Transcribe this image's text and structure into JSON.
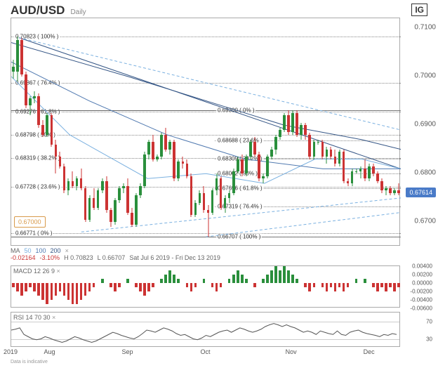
{
  "title": {
    "pair": "AUD/USD",
    "timeframe": "Daily"
  },
  "logo": "IG",
  "footer": "Data is indicative",
  "main": {
    "ymin": 0.665,
    "ymax": 0.712,
    "ylabels": [
      {
        "v": 0.71,
        "t": "0.7100"
      },
      {
        "v": 0.7,
        "t": "0.7000"
      },
      {
        "v": 0.69,
        "t": "0.6900"
      },
      {
        "v": 0.68,
        "t": "0.6800"
      },
      {
        "v": 0.67,
        "t": "0.6700"
      }
    ],
    "fib1": [
      {
        "v": 0.70823,
        "t": "0.70823 ( 100% )"
      },
      {
        "v": 0.69867,
        "t": "0.69867 ( 76.4% )"
      },
      {
        "v": 0.69276,
        "t": "0.69276 ( 61.8% )"
      },
      {
        "v": 0.68798,
        "t": "0.68798 ( 50% )"
      },
      {
        "v": 0.68319,
        "t": "0.68319 ( 38.2% )"
      },
      {
        "v": 0.67728,
        "t": "0.67728 ( 23.6% )"
      },
      {
        "v": 0.66771,
        "t": "0.66771 ( 0% )"
      }
    ],
    "fib2": [
      {
        "v": 0.693,
        "t": "0.69300 ( 0% )"
      },
      {
        "v": 0.68688,
        "t": "0.68688 ( 23.6% )"
      },
      {
        "v": 0.68309,
        "t": "0.68309 ( 38.2% )"
      },
      {
        "v": 0.68002,
        "t": "0.68002 ( 50% )"
      },
      {
        "v": 0.67696,
        "t": "0.67696 ( 61.8% )"
      },
      {
        "v": 0.67319,
        "t": "0.67319 ( 76.4% )"
      },
      {
        "v": 0.66707,
        "t": "0.66707 ( 100% )"
      }
    ],
    "solid_lines": [
      0.693,
      0.66707
    ],
    "current_price": {
      "v": 0.67614,
      "t": "0.67614"
    },
    "ref_price": {
      "v": 0.67,
      "t": "0.67000"
    },
    "candles": [
      {
        "o": 0.702,
        "h": 0.7035,
        "l": 0.6995,
        "c": 0.701,
        "u": true
      },
      {
        "o": 0.701,
        "h": 0.7082,
        "l": 0.699,
        "c": 0.7075,
        "u": true
      },
      {
        "o": 0.7075,
        "h": 0.708,
        "l": 0.7,
        "c": 0.7005,
        "u": false
      },
      {
        "o": 0.7005,
        "h": 0.701,
        "l": 0.6935,
        "c": 0.694,
        "u": false
      },
      {
        "o": 0.694,
        "h": 0.696,
        "l": 0.692,
        "c": 0.6955,
        "u": true
      },
      {
        "o": 0.6955,
        "h": 0.697,
        "l": 0.6945,
        "c": 0.696,
        "u": true
      },
      {
        "o": 0.696,
        "h": 0.6965,
        "l": 0.6895,
        "c": 0.69,
        "u": false
      },
      {
        "o": 0.69,
        "h": 0.691,
        "l": 0.6875,
        "c": 0.688,
        "u": false
      },
      {
        "o": 0.688,
        "h": 0.6925,
        "l": 0.6875,
        "c": 0.692,
        "u": true
      },
      {
        "o": 0.692,
        "h": 0.6925,
        "l": 0.6855,
        "c": 0.686,
        "u": false
      },
      {
        "o": 0.686,
        "h": 0.687,
        "l": 0.68,
        "c": 0.6835,
        "u": false
      },
      {
        "o": 0.6835,
        "h": 0.6845,
        "l": 0.681,
        "c": 0.6815,
        "u": false
      },
      {
        "o": 0.6815,
        "h": 0.682,
        "l": 0.676,
        "c": 0.6765,
        "u": false
      },
      {
        "o": 0.6765,
        "h": 0.679,
        "l": 0.6755,
        "c": 0.6785,
        "u": true
      },
      {
        "o": 0.6785,
        "h": 0.6805,
        "l": 0.677,
        "c": 0.6775,
        "u": false
      },
      {
        "o": 0.6775,
        "h": 0.6795,
        "l": 0.6765,
        "c": 0.679,
        "u": true
      },
      {
        "o": 0.679,
        "h": 0.681,
        "l": 0.6765,
        "c": 0.677,
        "u": false
      },
      {
        "o": 0.677,
        "h": 0.6775,
        "l": 0.67,
        "c": 0.6705,
        "u": false
      },
      {
        "o": 0.6705,
        "h": 0.6755,
        "l": 0.67,
        "c": 0.675,
        "u": true
      },
      {
        "o": 0.675,
        "h": 0.677,
        "l": 0.6725,
        "c": 0.673,
        "u": false
      },
      {
        "o": 0.673,
        "h": 0.677,
        "l": 0.6725,
        "c": 0.6765,
        "u": true
      },
      {
        "o": 0.6765,
        "h": 0.679,
        "l": 0.676,
        "c": 0.6785,
        "u": true
      },
      {
        "o": 0.6785,
        "h": 0.6795,
        "l": 0.672,
        "c": 0.6725,
        "u": false
      },
      {
        "o": 0.6725,
        "h": 0.673,
        "l": 0.669,
        "c": 0.67,
        "u": false
      },
      {
        "o": 0.67,
        "h": 0.675,
        "l": 0.6695,
        "c": 0.6745,
        "u": true
      },
      {
        "o": 0.6745,
        "h": 0.6775,
        "l": 0.674,
        "c": 0.677,
        "u": true
      },
      {
        "o": 0.677,
        "h": 0.678,
        "l": 0.676,
        "c": 0.6775,
        "u": true
      },
      {
        "o": 0.6775,
        "h": 0.679,
        "l": 0.6715,
        "c": 0.672,
        "u": false
      },
      {
        "o": 0.672,
        "h": 0.673,
        "l": 0.669,
        "c": 0.6695,
        "u": false
      },
      {
        "o": 0.6695,
        "h": 0.676,
        "l": 0.669,
        "c": 0.6755,
        "u": true
      },
      {
        "o": 0.6755,
        "h": 0.678,
        "l": 0.675,
        "c": 0.6775,
        "u": true
      },
      {
        "o": 0.6775,
        "h": 0.6845,
        "l": 0.677,
        "c": 0.684,
        "u": true
      },
      {
        "o": 0.684,
        "h": 0.687,
        "l": 0.683,
        "c": 0.6865,
        "u": true
      },
      {
        "o": 0.6865,
        "h": 0.688,
        "l": 0.6825,
        "c": 0.683,
        "u": false
      },
      {
        "o": 0.683,
        "h": 0.684,
        "l": 0.6825,
        "c": 0.6835,
        "u": true
      },
      {
        "o": 0.6835,
        "h": 0.6885,
        "l": 0.683,
        "c": 0.688,
        "u": true
      },
      {
        "o": 0.688,
        "h": 0.6895,
        "l": 0.6845,
        "c": 0.685,
        "u": false
      },
      {
        "o": 0.685,
        "h": 0.687,
        "l": 0.684,
        "c": 0.6865,
        "u": true
      },
      {
        "o": 0.6865,
        "h": 0.687,
        "l": 0.6785,
        "c": 0.679,
        "u": false
      },
      {
        "o": 0.679,
        "h": 0.683,
        "l": 0.6785,
        "c": 0.6825,
        "u": true
      },
      {
        "o": 0.6825,
        "h": 0.6835,
        "l": 0.681,
        "c": 0.682,
        "u": false
      },
      {
        "o": 0.682,
        "h": 0.683,
        "l": 0.679,
        "c": 0.6795,
        "u": false
      },
      {
        "o": 0.6795,
        "h": 0.68,
        "l": 0.671,
        "c": 0.6715,
        "u": false
      },
      {
        "o": 0.6715,
        "h": 0.6745,
        "l": 0.671,
        "c": 0.674,
        "u": true
      },
      {
        "o": 0.674,
        "h": 0.6765,
        "l": 0.6735,
        "c": 0.676,
        "u": true
      },
      {
        "o": 0.676,
        "h": 0.6775,
        "l": 0.672,
        "c": 0.6725,
        "u": false
      },
      {
        "o": 0.6725,
        "h": 0.6735,
        "l": 0.667,
        "c": 0.672,
        "u": false
      },
      {
        "o": 0.672,
        "h": 0.677,
        "l": 0.6715,
        "c": 0.6765,
        "u": true
      },
      {
        "o": 0.6765,
        "h": 0.68,
        "l": 0.6755,
        "c": 0.679,
        "u": true
      },
      {
        "o": 0.679,
        "h": 0.6795,
        "l": 0.6725,
        "c": 0.673,
        "u": false
      },
      {
        "o": 0.673,
        "h": 0.6755,
        "l": 0.672,
        "c": 0.675,
        "u": true
      },
      {
        "o": 0.675,
        "h": 0.6765,
        "l": 0.674,
        "c": 0.676,
        "u": true
      },
      {
        "o": 0.676,
        "h": 0.681,
        "l": 0.6755,
        "c": 0.6805,
        "u": true
      },
      {
        "o": 0.6805,
        "h": 0.6835,
        "l": 0.68,
        "c": 0.683,
        "u": true
      },
      {
        "o": 0.683,
        "h": 0.684,
        "l": 0.6795,
        "c": 0.68,
        "u": false
      },
      {
        "o": 0.68,
        "h": 0.684,
        "l": 0.6795,
        "c": 0.6835,
        "u": true
      },
      {
        "o": 0.6835,
        "h": 0.687,
        "l": 0.683,
        "c": 0.6865,
        "u": true
      },
      {
        "o": 0.6865,
        "h": 0.6875,
        "l": 0.6835,
        "c": 0.684,
        "u": false
      },
      {
        "o": 0.684,
        "h": 0.6845,
        "l": 0.6785,
        "c": 0.679,
        "u": false
      },
      {
        "o": 0.679,
        "h": 0.68,
        "l": 0.678,
        "c": 0.6795,
        "u": true
      },
      {
        "o": 0.6795,
        "h": 0.684,
        "l": 0.679,
        "c": 0.6835,
        "u": true
      },
      {
        "o": 0.6835,
        "h": 0.6855,
        "l": 0.683,
        "c": 0.685,
        "u": true
      },
      {
        "o": 0.685,
        "h": 0.688,
        "l": 0.684,
        "c": 0.6875,
        "u": true
      },
      {
        "o": 0.6875,
        "h": 0.6895,
        "l": 0.687,
        "c": 0.689,
        "u": true
      },
      {
        "o": 0.689,
        "h": 0.6925,
        "l": 0.6885,
        "c": 0.692,
        "u": true
      },
      {
        "o": 0.692,
        "h": 0.693,
        "l": 0.688,
        "c": 0.6885,
        "u": false
      },
      {
        "o": 0.6885,
        "h": 0.693,
        "l": 0.688,
        "c": 0.6925,
        "u": true
      },
      {
        "o": 0.6925,
        "h": 0.693,
        "l": 0.6875,
        "c": 0.688,
        "u": false
      },
      {
        "o": 0.688,
        "h": 0.6905,
        "l": 0.687,
        "c": 0.69,
        "u": true
      },
      {
        "o": 0.69,
        "h": 0.6905,
        "l": 0.687,
        "c": 0.688,
        "u": false
      },
      {
        "o": 0.688,
        "h": 0.6885,
        "l": 0.683,
        "c": 0.6835,
        "u": false
      },
      {
        "o": 0.6835,
        "h": 0.687,
        "l": 0.683,
        "c": 0.6865,
        "u": true
      },
      {
        "o": 0.6865,
        "h": 0.687,
        "l": 0.686,
        "c": 0.6865,
        "u": true
      },
      {
        "o": 0.6865,
        "h": 0.687,
        "l": 0.683,
        "c": 0.6835,
        "u": false
      },
      {
        "o": 0.6835,
        "h": 0.6855,
        "l": 0.682,
        "c": 0.685,
        "u": true
      },
      {
        "o": 0.685,
        "h": 0.6855,
        "l": 0.683,
        "c": 0.6835,
        "u": false
      },
      {
        "o": 0.6835,
        "h": 0.685,
        "l": 0.6815,
        "c": 0.682,
        "u": false
      },
      {
        "o": 0.682,
        "h": 0.685,
        "l": 0.6815,
        "c": 0.6845,
        "u": true
      },
      {
        "o": 0.6845,
        "h": 0.685,
        "l": 0.678,
        "c": 0.6785,
        "u": false
      },
      {
        "o": 0.6785,
        "h": 0.679,
        "l": 0.6775,
        "c": 0.678,
        "u": false
      },
      {
        "o": 0.678,
        "h": 0.681,
        "l": 0.6775,
        "c": 0.6805,
        "u": true
      },
      {
        "o": 0.6805,
        "h": 0.681,
        "l": 0.68,
        "c": 0.6805,
        "u": true
      },
      {
        "o": 0.6805,
        "h": 0.6815,
        "l": 0.679,
        "c": 0.681,
        "u": true
      },
      {
        "o": 0.681,
        "h": 0.683,
        "l": 0.6785,
        "c": 0.679,
        "u": false
      },
      {
        "o": 0.679,
        "h": 0.682,
        "l": 0.6785,
        "c": 0.6815,
        "u": true
      },
      {
        "o": 0.6815,
        "h": 0.682,
        "l": 0.6795,
        "c": 0.68,
        "u": false
      },
      {
        "o": 0.68,
        "h": 0.6805,
        "l": 0.678,
        "c": 0.6785,
        "u": false
      },
      {
        "o": 0.6785,
        "h": 0.679,
        "l": 0.676,
        "c": 0.6765,
        "u": false
      },
      {
        "o": 0.6765,
        "h": 0.6775,
        "l": 0.6755,
        "c": 0.677,
        "u": true
      },
      {
        "o": 0.677,
        "h": 0.6775,
        "l": 0.6755,
        "c": 0.676,
        "u": false
      },
      {
        "o": 0.676,
        "h": 0.677,
        "l": 0.6755,
        "c": 0.6765,
        "u": true
      },
      {
        "o": 0.6765,
        "h": 0.678,
        "l": 0.6755,
        "c": 0.676,
        "u": false
      }
    ],
    "ma50": {
      "start_y": 0.7,
      "mid": [
        [
          0.15,
          0.688
        ],
        [
          0.35,
          0.679
        ],
        [
          0.5,
          0.68
        ],
        [
          0.65,
          0.678
        ],
        [
          0.78,
          0.683
        ],
        [
          0.9,
          0.683
        ]
      ],
      "end_y": 0.681,
      "color": "#7ab0e0"
    },
    "ma100": {
      "start_y": 0.703,
      "mid": [
        [
          0.2,
          0.695
        ],
        [
          0.4,
          0.688
        ],
        [
          0.6,
          0.683
        ],
        [
          0.8,
          0.681
        ]
      ],
      "end_y": 0.681,
      "color": "#5079b0"
    },
    "ma200": {
      "start_y": 0.707,
      "mid": [
        [
          0.3,
          0.7
        ],
        [
          0.5,
          0.695
        ],
        [
          0.7,
          0.69
        ],
        [
          0.9,
          0.687
        ]
      ],
      "end_y": 0.685,
      "color": "#345585"
    },
    "trend_lines": [
      {
        "x1": 0.02,
        "y1": 0.708,
        "x2": 1.0,
        "y2": 0.681,
        "color": "#345585",
        "dash": false
      },
      {
        "x1": 0.02,
        "y1": 0.708,
        "x2": 1.0,
        "y2": 0.689,
        "color": "#7ab0e0",
        "dash": true
      },
      {
        "x1": 0.18,
        "y1": 0.668,
        "x2": 1.0,
        "y2": 0.675,
        "color": "#7ab0e0",
        "dash": true
      },
      {
        "x1": 0.5,
        "y1": 0.667,
        "x2": 1.0,
        "y2": 0.672,
        "color": "#7ab0e0",
        "dash": true
      }
    ]
  },
  "ma_info": {
    "label": "MA",
    "periods": [
      "50",
      "100",
      "200"
    ],
    "stats": [
      "-0.02164",
      "-3.10%",
      "H 0.70823",
      "L 0.66707",
      "Sat Jul 6 2019 - Fri Dec 13 2019"
    ],
    "stat_colors": [
      "#cc3333",
      "#cc3333",
      "#666",
      "#666",
      "#666"
    ]
  },
  "macd": {
    "label": "MACD",
    "params": [
      "12",
      "26",
      "9"
    ],
    "ylabels": [
      {
        "v": 0.004,
        "t": "0.00400"
      },
      {
        "v": 0.002,
        "t": "0.00200"
      },
      {
        "v": 0.0,
        "t": "0.00000"
      },
      {
        "v": -0.002,
        "t": "-0.00200"
      },
      {
        "v": -0.004,
        "t": "-0.00400"
      },
      {
        "v": -0.006,
        "t": "-0.00600"
      }
    ],
    "ymin": -0.006,
    "ymax": 0.004,
    "bars": [
      -1,
      -2,
      -3,
      -2,
      -1,
      -2,
      -3,
      -4,
      -5,
      -4,
      -3,
      -2,
      -3,
      -4,
      -5,
      -5,
      -4,
      -3,
      -2,
      -1,
      0,
      1,
      0,
      -1,
      -2,
      -1,
      0,
      1,
      0,
      -1,
      -2,
      -3,
      -2,
      -1,
      0,
      1,
      2,
      3,
      2,
      1,
      0,
      -1,
      -2,
      -1,
      0,
      1,
      0,
      -1,
      -2,
      -1,
      0,
      1,
      2,
      3,
      2,
      1,
      0,
      -1,
      0,
      1,
      2,
      3,
      4,
      3,
      4,
      3,
      2,
      1,
      0,
      -1,
      -2,
      -1,
      0,
      -1,
      -2,
      -1,
      -2,
      -1,
      -2,
      -1,
      0,
      1,
      0,
      1,
      0,
      -1,
      -2,
      -1,
      -2,
      -1,
      -2,
      -1
    ]
  },
  "rsi": {
    "label": "RSI",
    "params": [
      "14",
      "70",
      "30"
    ],
    "ylabels": [
      {
        "v": 70,
        "t": "70"
      },
      {
        "v": 30,
        "t": "30"
      }
    ],
    "ymin": 10,
    "ymax": 90,
    "points": [
      50,
      52,
      55,
      40,
      35,
      30,
      28,
      30,
      35,
      32,
      28,
      25,
      22,
      25,
      30,
      35,
      32,
      28,
      25,
      22,
      25,
      30,
      35,
      40,
      45,
      42,
      38,
      35,
      32,
      30,
      35,
      42,
      50,
      48,
      45,
      50,
      55,
      52,
      48,
      42,
      38,
      40,
      35,
      30,
      28,
      32,
      38,
      35,
      40,
      45,
      48,
      50,
      45,
      50,
      55,
      52,
      48,
      45,
      48,
      52,
      58,
      62,
      65,
      62,
      58,
      62,
      58,
      55,
      50,
      45,
      48,
      45,
      40,
      48,
      45,
      42,
      40,
      48,
      40,
      38,
      45,
      48,
      50,
      45,
      42,
      40,
      38,
      35,
      40,
      38,
      42,
      40
    ]
  },
  "xaxis": {
    "labels": [
      {
        "p": 0.0,
        "t": "2019"
      },
      {
        "p": 0.1,
        "t": "Aug"
      },
      {
        "p": 0.3,
        "t": "Sep"
      },
      {
        "p": 0.5,
        "t": "Oct"
      },
      {
        "p": 0.72,
        "t": "Nov"
      },
      {
        "p": 0.92,
        "t": "Dec"
      }
    ]
  },
  "colors": {
    "up": "#2a8f3c",
    "down": "#cc3333",
    "wick": "#000"
  }
}
